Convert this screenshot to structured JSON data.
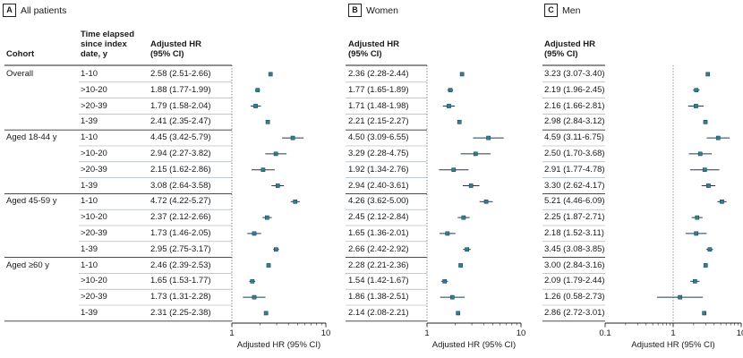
{
  "panels": [
    {
      "letter": "A",
      "title": "All patients"
    },
    {
      "letter": "B",
      "title": "Women"
    },
    {
      "letter": "C",
      "title": "Men"
    }
  ],
  "headers": {
    "cohort": "Cohort",
    "time": "Time elapsed\nsince index\ndate, y",
    "hr": "Adjusted HR\n(95% CI)"
  },
  "groups": [
    "Overall",
    "Aged 18-44 y",
    "Aged 45-59 y",
    "Aged ≥60 y"
  ],
  "time_labels": [
    "1-10",
    ">10-20",
    ">20-39",
    "1-39"
  ],
  "chart_data": [
    {
      "type": "forest",
      "panel": "A",
      "xlabel": "Adjusted HR (95% CI)",
      "xscale": "log",
      "xlim": [
        1,
        10
      ],
      "xticks": [
        1,
        10
      ],
      "reference_line": 1,
      "rows": [
        {
          "group": "Overall",
          "time": "1-10",
          "label": "2.58 (2.51-2.66)",
          "hr": 2.58,
          "lo": 2.51,
          "hi": 2.66
        },
        {
          "group": "Overall",
          "time": ">10-20",
          "label": "1.88 (1.77-1.99)",
          "hr": 1.88,
          "lo": 1.77,
          "hi": 1.99
        },
        {
          "group": "Overall",
          "time": ">20-39",
          "label": "1.79 (1.58-2.04)",
          "hr": 1.79,
          "lo": 1.58,
          "hi": 2.04
        },
        {
          "group": "Overall",
          "time": "1-39",
          "label": "2.41 (2.35-2.47)",
          "hr": 2.41,
          "lo": 2.35,
          "hi": 2.47
        },
        {
          "group": "Aged 18-44 y",
          "time": "1-10",
          "label": "4.45 (3.42-5.79)",
          "hr": 4.45,
          "lo": 3.42,
          "hi": 5.79
        },
        {
          "group": "Aged 18-44 y",
          "time": ">10-20",
          "label": "2.94 (2.27-3.82)",
          "hr": 2.94,
          "lo": 2.27,
          "hi": 3.82
        },
        {
          "group": "Aged 18-44 y",
          "time": ">20-39",
          "label": "2.15 (1.62-2.86)",
          "hr": 2.15,
          "lo": 1.62,
          "hi": 2.86
        },
        {
          "group": "Aged 18-44 y",
          "time": "1-39",
          "label": "3.08 (2.64-3.58)",
          "hr": 3.08,
          "lo": 2.64,
          "hi": 3.58
        },
        {
          "group": "Aged 45-59 y",
          "time": "1-10",
          "label": "4.72 (4.22-5.27)",
          "hr": 4.72,
          "lo": 4.22,
          "hi": 5.27
        },
        {
          "group": "Aged 45-59 y",
          "time": ">10-20",
          "label": "2.37 (2.12-2.66)",
          "hr": 2.37,
          "lo": 2.12,
          "hi": 2.66
        },
        {
          "group": "Aged 45-59 y",
          "time": ">20-39",
          "label": "1.73 (1.46-2.05)",
          "hr": 1.73,
          "lo": 1.46,
          "hi": 2.05
        },
        {
          "group": "Aged 45-59 y",
          "time": "1-39",
          "label": "2.95 (2.75-3.17)",
          "hr": 2.95,
          "lo": 2.75,
          "hi": 3.17
        },
        {
          "group": "Aged ≥60 y",
          "time": "1-10",
          "label": "2.46 (2.39-2.53)",
          "hr": 2.46,
          "lo": 2.39,
          "hi": 2.53
        },
        {
          "group": "Aged ≥60 y",
          "time": ">10-20",
          "label": "1.65 (1.53-1.77)",
          "hr": 1.65,
          "lo": 1.53,
          "hi": 1.77
        },
        {
          "group": "Aged ≥60 y",
          "time": ">20-39",
          "label": "1.73 (1.31-2.28)",
          "hr": 1.73,
          "lo": 1.31,
          "hi": 2.28
        },
        {
          "group": "Aged ≥60 y",
          "time": "1-39",
          "label": "2.31 (2.25-2.38)",
          "hr": 2.31,
          "lo": 2.25,
          "hi": 2.38
        }
      ]
    },
    {
      "type": "forest",
      "panel": "B",
      "xlabel": "Adjusted HR (95% CI)",
      "xscale": "log",
      "xlim": [
        1,
        10
      ],
      "xticks": [
        1,
        10
      ],
      "reference_line": 1,
      "rows": [
        {
          "group": "Overall",
          "time": "1-10",
          "label": "2.36 (2.28-2.44)",
          "hr": 2.36,
          "lo": 2.28,
          "hi": 2.44
        },
        {
          "group": "Overall",
          "time": ">10-20",
          "label": "1.77 (1.65-1.89)",
          "hr": 1.77,
          "lo": 1.65,
          "hi": 1.89
        },
        {
          "group": "Overall",
          "time": ">20-39",
          "label": "1.71 (1.48-1.98)",
          "hr": 1.71,
          "lo": 1.48,
          "hi": 1.98
        },
        {
          "group": "Overall",
          "time": "1-39",
          "label": "2.21 (2.15-2.27)",
          "hr": 2.21,
          "lo": 2.15,
          "hi": 2.27
        },
        {
          "group": "Aged 18-44 y",
          "time": "1-10",
          "label": "4.50 (3.09-6.55)",
          "hr": 4.5,
          "lo": 3.09,
          "hi": 6.55
        },
        {
          "group": "Aged 18-44 y",
          "time": ">10-20",
          "label": "3.29 (2.28-4.75)",
          "hr": 3.29,
          "lo": 2.28,
          "hi": 4.75
        },
        {
          "group": "Aged 18-44 y",
          "time": ">20-39",
          "label": "1.92 (1.34-2.76)",
          "hr": 1.92,
          "lo": 1.34,
          "hi": 2.76
        },
        {
          "group": "Aged 18-44 y",
          "time": "1-39",
          "label": "2.94 (2.40-3.61)",
          "hr": 2.94,
          "lo": 2.4,
          "hi": 3.61
        },
        {
          "group": "Aged 45-59 y",
          "time": "1-10",
          "label": "4.26 (3.62-5.00)",
          "hr": 4.26,
          "lo": 3.62,
          "hi": 5.0
        },
        {
          "group": "Aged 45-59 y",
          "time": ">10-20",
          "label": "2.45 (2.12-2.84)",
          "hr": 2.45,
          "lo": 2.12,
          "hi": 2.84
        },
        {
          "group": "Aged 45-59 y",
          "time": ">20-39",
          "label": "1.65 (1.36-2.01)",
          "hr": 1.65,
          "lo": 1.36,
          "hi": 2.01
        },
        {
          "group": "Aged 45-59 y",
          "time": "1-39",
          "label": "2.66 (2.42-2.92)",
          "hr": 2.66,
          "lo": 2.42,
          "hi": 2.92
        },
        {
          "group": "Aged ≥60 y",
          "time": "1-10",
          "label": "2.28 (2.21-2.36)",
          "hr": 2.28,
          "lo": 2.21,
          "hi": 2.36
        },
        {
          "group": "Aged ≥60 y",
          "time": ">10-20",
          "label": "1.54 (1.42-1.67)",
          "hr": 1.54,
          "lo": 1.42,
          "hi": 1.67
        },
        {
          "group": "Aged ≥60 y",
          "time": ">20-39",
          "label": "1.86 (1.38-2.51)",
          "hr": 1.86,
          "lo": 1.38,
          "hi": 2.51
        },
        {
          "group": "Aged ≥60 y",
          "time": "1-39",
          "label": "2.14 (2.08-2.21)",
          "hr": 2.14,
          "lo": 2.08,
          "hi": 2.21
        }
      ]
    },
    {
      "type": "forest",
      "panel": "C",
      "xlabel": "Adjusted HR (95% CI)",
      "xscale": "log",
      "xlim": [
        0.1,
        10
      ],
      "xticks": [
        0.1,
        1,
        10
      ],
      "reference_line": 1,
      "rows": [
        {
          "group": "Overall",
          "time": "1-10",
          "label": "3.23 (3.07-3.40)",
          "hr": 3.23,
          "lo": 3.07,
          "hi": 3.4
        },
        {
          "group": "Overall",
          "time": ">10-20",
          "label": "2.19 (1.96-2.45)",
          "hr": 2.19,
          "lo": 1.96,
          "hi": 2.45
        },
        {
          "group": "Overall",
          "time": ">20-39",
          "label": "2.16 (1.66-2.81)",
          "hr": 2.16,
          "lo": 1.66,
          "hi": 2.81
        },
        {
          "group": "Overall",
          "time": "1-39",
          "label": "2.98 (2.84-3.12)",
          "hr": 2.98,
          "lo": 2.84,
          "hi": 3.12
        },
        {
          "group": "Aged 18-44 y",
          "time": "1-10",
          "label": "4.59 (3.11-6.75)",
          "hr": 4.59,
          "lo": 3.11,
          "hi": 6.75
        },
        {
          "group": "Aged 18-44 y",
          "time": ">10-20",
          "label": "2.50 (1.70-3.68)",
          "hr": 2.5,
          "lo": 1.7,
          "hi": 3.68
        },
        {
          "group": "Aged 18-44 y",
          "time": ">20-39",
          "label": "2.91 (1.77-4.78)",
          "hr": 2.91,
          "lo": 1.77,
          "hi": 4.78
        },
        {
          "group": "Aged 18-44 y",
          "time": "1-39",
          "label": "3.30 (2.62-4.17)",
          "hr": 3.3,
          "lo": 2.62,
          "hi": 4.17
        },
        {
          "group": "Aged 45-59 y",
          "time": "1-10",
          "label": "5.21 (4.46-6.09)",
          "hr": 5.21,
          "lo": 4.46,
          "hi": 6.09
        },
        {
          "group": "Aged 45-59 y",
          "time": ">10-20",
          "label": "2.25 (1.87-2.71)",
          "hr": 2.25,
          "lo": 1.87,
          "hi": 2.71
        },
        {
          "group": "Aged 45-59 y",
          "time": ">20-39",
          "label": "2.18 (1.52-3.11)",
          "hr": 2.18,
          "lo": 1.52,
          "hi": 3.11
        },
        {
          "group": "Aged 45-59 y",
          "time": "1-39",
          "label": "3.45 (3.08-3.85)",
          "hr": 3.45,
          "lo": 3.08,
          "hi": 3.85
        },
        {
          "group": "Aged ≥60 y",
          "time": "1-10",
          "label": "3.00 (2.84-3.16)",
          "hr": 3.0,
          "lo": 2.84,
          "hi": 3.16
        },
        {
          "group": "Aged ≥60 y",
          "time": ">10-20",
          "label": "2.09 (1.79-2.44)",
          "hr": 2.09,
          "lo": 1.79,
          "hi": 2.44
        },
        {
          "group": "Aged ≥60 y",
          "time": ">20-39",
          "label": "1.26 (0.58-2.73)",
          "hr": 1.26,
          "lo": 0.58,
          "hi": 2.73
        },
        {
          "group": "Aged ≥60 y",
          "time": "1-39",
          "label": "2.86 (2.72-3.01)",
          "hr": 2.86,
          "lo": 2.72,
          "hi": 3.01
        }
      ]
    }
  ],
  "colors": {
    "marker": "#2f7f8f",
    "whisker": "#1a3a55",
    "band": "#9aa7b4",
    "reference": "#555555"
  }
}
